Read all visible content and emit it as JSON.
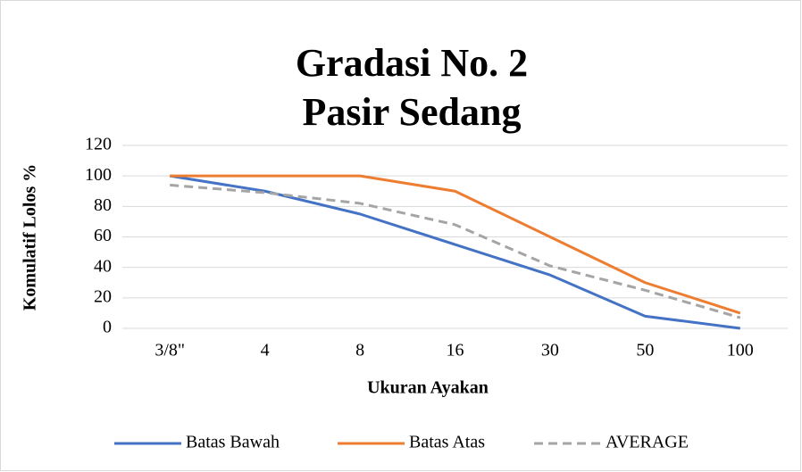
{
  "chart_data": {
    "type": "line",
    "title": [
      "Gradasi No. 2",
      "Pasir Sedang"
    ],
    "x_label": "Ukuran Ayakan",
    "y_label": "Komulatif Lolos %",
    "categories": [
      "3/8\"",
      "4",
      "8",
      "16",
      "30",
      "50",
      "100"
    ],
    "series": [
      {
        "name": "Batas Bawah",
        "color": "#4472c4",
        "dashed": false,
        "values": [
          100,
          90,
          75,
          55,
          35,
          8,
          0
        ]
      },
      {
        "name": "Batas Atas",
        "color": "#ed7d31",
        "dashed": false,
        "values": [
          100,
          100,
          100,
          90,
          60,
          30,
          10
        ]
      },
      {
        "name": "AVERAGE",
        "color": "#a5a5a5",
        "dashed": true,
        "values": [
          94,
          89,
          82,
          68,
          41,
          25,
          7
        ]
      }
    ],
    "ylim": [
      0,
      120
    ],
    "yticks": [
      0,
      20,
      40,
      60,
      80,
      100,
      120
    ],
    "grid": true,
    "legend": "bottom"
  }
}
